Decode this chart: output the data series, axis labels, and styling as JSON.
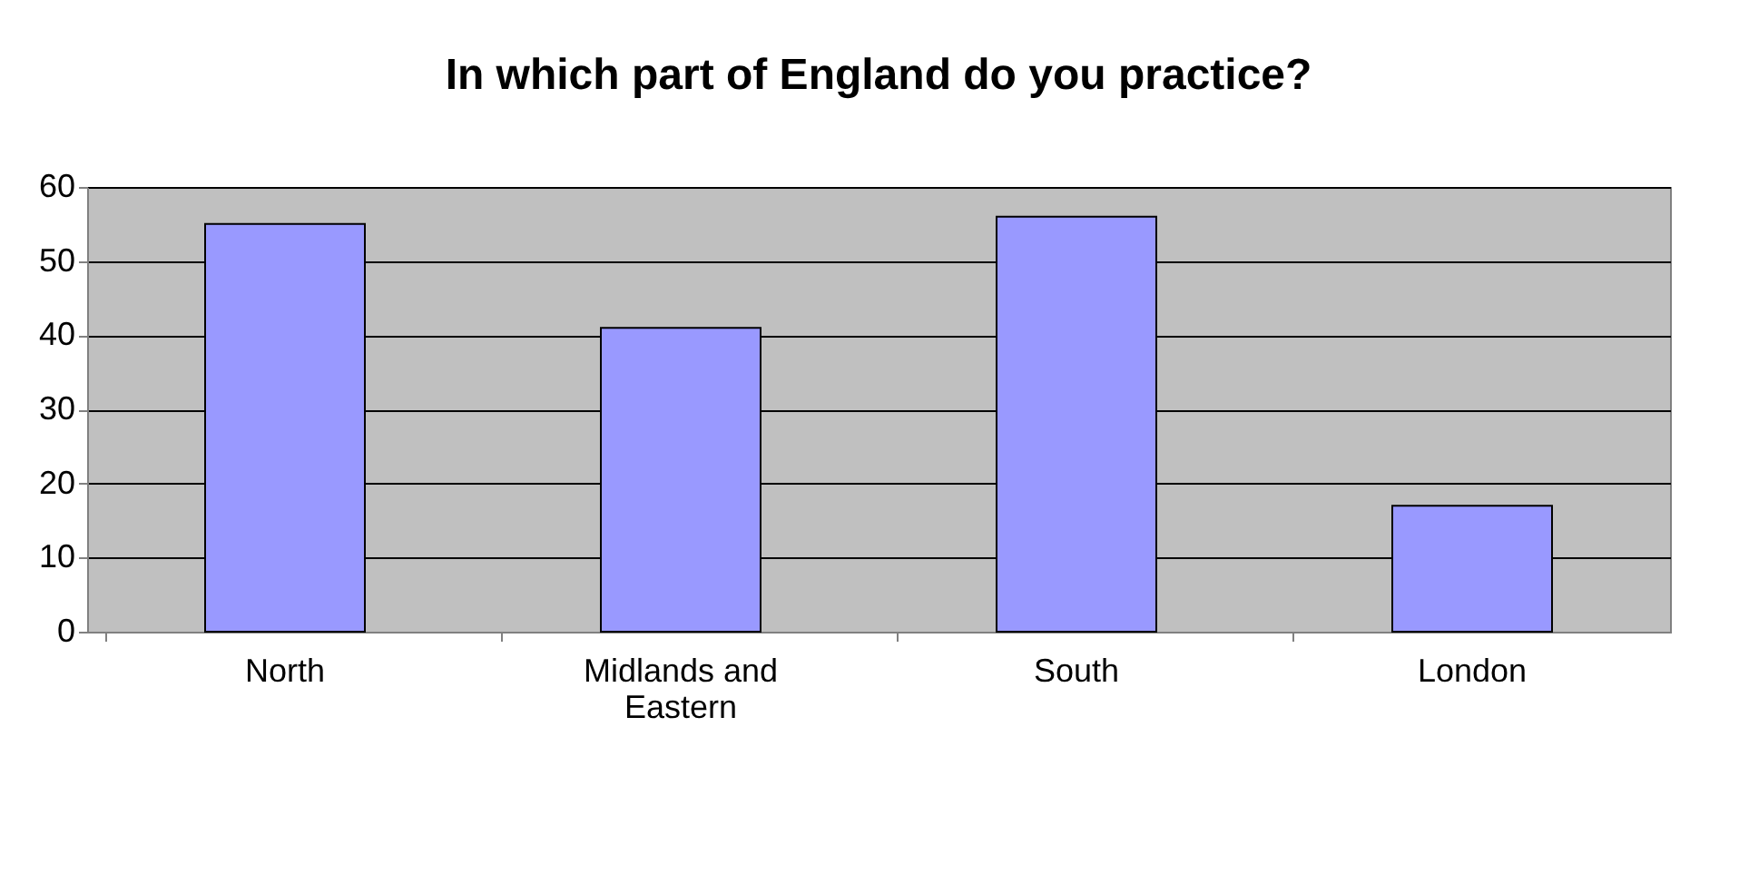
{
  "chart_data": {
    "type": "bar",
    "title": "In which part of England do you practice?",
    "categories": [
      "North",
      "Midlands and Eastern",
      "South",
      "London"
    ],
    "values": [
      55,
      41,
      56,
      17
    ],
    "color": "#9999ff",
    "ylim": [
      0,
      60
    ],
    "yticks": [
      0,
      10,
      20,
      30,
      40,
      50,
      60
    ],
    "grid": "y"
  }
}
